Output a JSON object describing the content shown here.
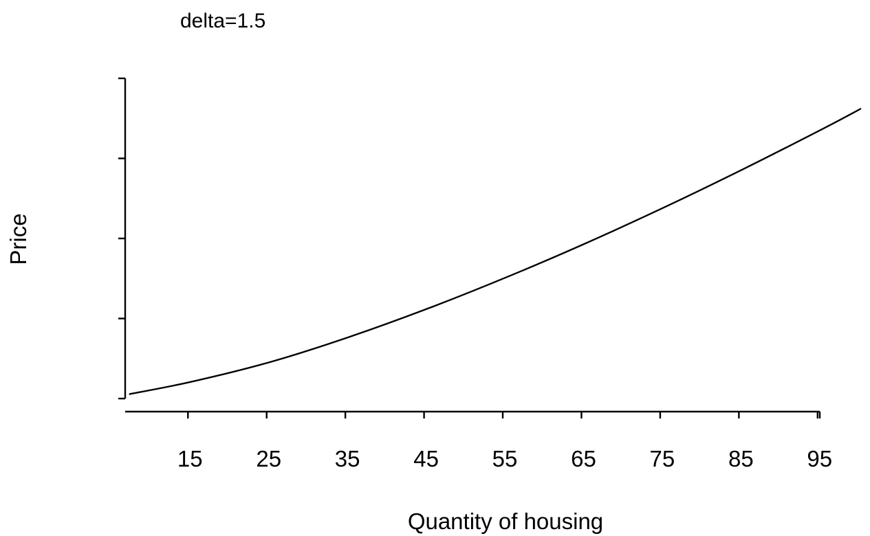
{
  "chart_data": {
    "type": "line",
    "title": "delta=1.5",
    "xlabel": "Quantity of housing",
    "ylabel": "Price",
    "xlim": [
      6.5,
      100
    ],
    "ylim": [
      0,
      1
    ],
    "x_ticks": [
      15,
      25,
      35,
      45,
      55,
      65,
      75,
      85,
      95
    ],
    "y_ticks_count": 5,
    "y_tick_labels_shown": false,
    "grid": false,
    "line_color": "#000000",
    "series": [
      {
        "x": [
          7,
          15,
          25,
          35,
          45,
          55,
          65,
          75,
          85,
          95,
          100
        ],
        "y": [
          0.0137,
          0.0529,
          0.1145,
          0.1926,
          0.2815,
          0.3793,
          0.4848,
          0.5973,
          0.7161,
          0.8405,
          0.9055
        ]
      }
    ]
  }
}
